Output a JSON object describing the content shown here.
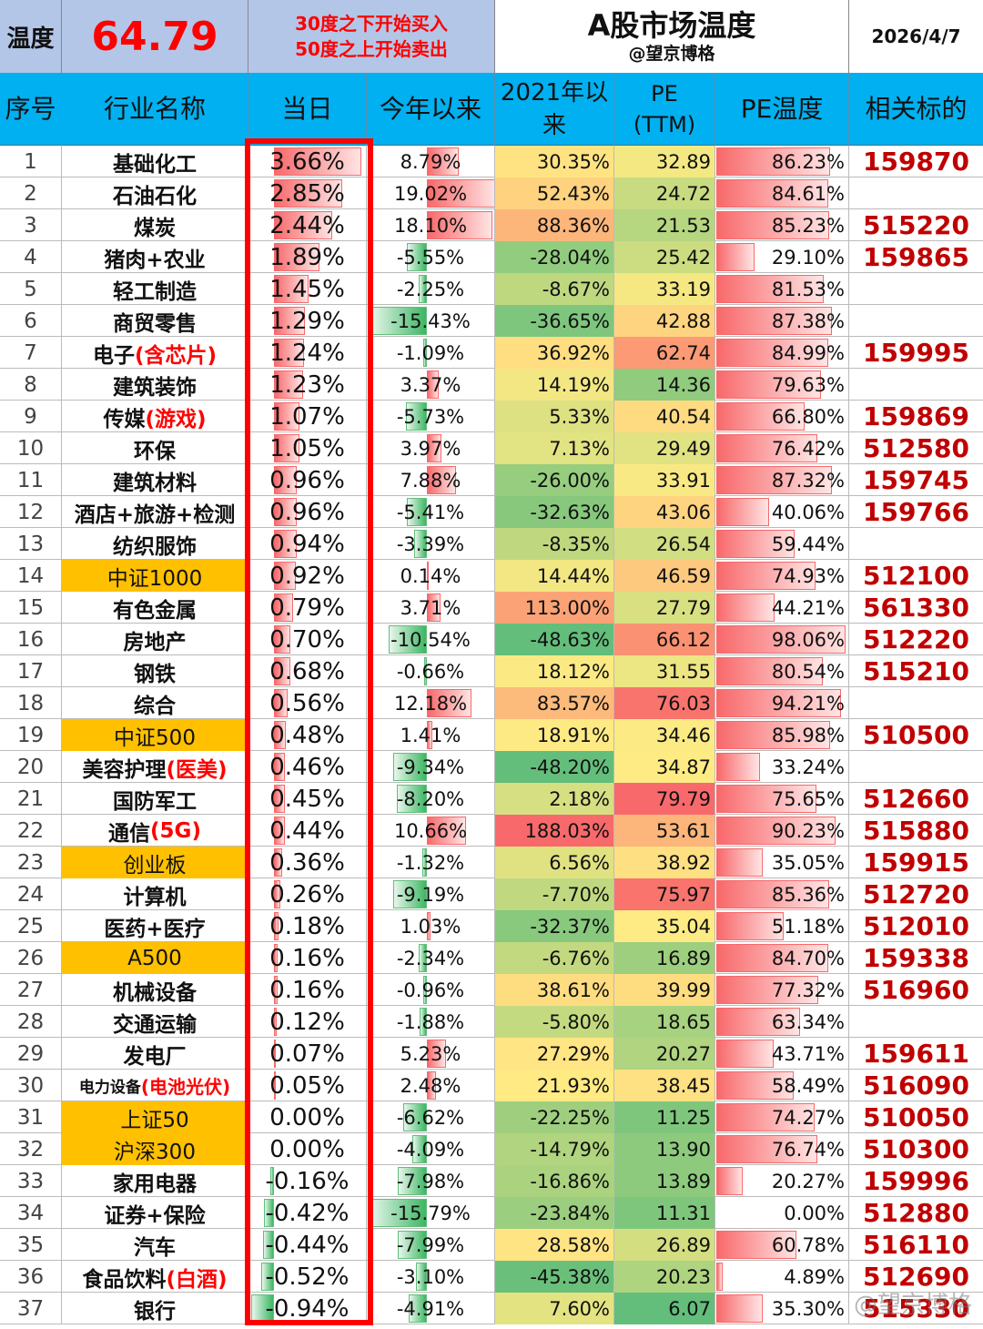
{
  "header": {
    "temp_label": "温度",
    "temp_value": "64.79",
    "rule_line1": "30度之下开始买入",
    "rule_line2": "50度之上开始卖出",
    "title": "A股市场温度",
    "author": "@望京博格",
    "date": "2026/4/7"
  },
  "columns": {
    "seq": "序号",
    "name": "行业名称",
    "today": "当日",
    "ytd": "今年以来",
    "since2021": "2021年以来",
    "pe_line1": "PE",
    "pe_line2": "(TTM)",
    "pe_temp": "PE温度",
    "ticker": "相关标的"
  },
  "watermark": "@望京博格",
  "rows": [
    {
      "seq": "1",
      "name": "基础化工",
      "sub": "",
      "idx": false,
      "today": "3.66%",
      "today_v": 3.66,
      "ytd": "8.79%",
      "ytd_v": 8.79,
      "since2021": "30.35%",
      "s21_v": 30.35,
      "pe": "32.89",
      "pe_v": 32.89,
      "pe_temp": "86.23%",
      "pt_v": 86.23,
      "ticker": "159870"
    },
    {
      "seq": "2",
      "name": "石油石化",
      "sub": "",
      "idx": false,
      "today": "2.85%",
      "today_v": 2.85,
      "ytd": "19.02%",
      "ytd_v": 19.02,
      "since2021": "52.43%",
      "s21_v": 52.43,
      "pe": "24.72",
      "pe_v": 24.72,
      "pe_temp": "84.61%",
      "pt_v": 84.61,
      "ticker": ""
    },
    {
      "seq": "3",
      "name": "煤炭",
      "sub": "",
      "idx": false,
      "today": "2.44%",
      "today_v": 2.44,
      "ytd": "18.10%",
      "ytd_v": 18.1,
      "since2021": "88.36%",
      "s21_v": 88.36,
      "pe": "21.53",
      "pe_v": 21.53,
      "pe_temp": "85.23%",
      "pt_v": 85.23,
      "ticker": "515220"
    },
    {
      "seq": "4",
      "name": "猪肉+农业",
      "sub": "",
      "idx": false,
      "today": "1.89%",
      "today_v": 1.89,
      "ytd": "-5.55%",
      "ytd_v": -5.55,
      "since2021": "-28.04%",
      "s21_v": -28.04,
      "pe": "25.42",
      "pe_v": 25.42,
      "pe_temp": "29.10%",
      "pt_v": 29.1,
      "ticker": "159865"
    },
    {
      "seq": "5",
      "name": "轻工制造",
      "sub": "",
      "idx": false,
      "today": "1.45%",
      "today_v": 1.45,
      "ytd": "-2.25%",
      "ytd_v": -2.25,
      "since2021": "-8.67%",
      "s21_v": -8.67,
      "pe": "33.19",
      "pe_v": 33.19,
      "pe_temp": "81.53%",
      "pt_v": 81.53,
      "ticker": ""
    },
    {
      "seq": "6",
      "name": "商贸零售",
      "sub": "",
      "idx": false,
      "today": "1.29%",
      "today_v": 1.29,
      "ytd": "-15.43%",
      "ytd_v": -15.43,
      "since2021": "-36.65%",
      "s21_v": -36.65,
      "pe": "42.88",
      "pe_v": 42.88,
      "pe_temp": "87.38%",
      "pt_v": 87.38,
      "ticker": ""
    },
    {
      "seq": "7",
      "name": "电子",
      "sub": "(含芯片)",
      "idx": false,
      "today": "1.24%",
      "today_v": 1.24,
      "ytd": "-1.09%",
      "ytd_v": -1.09,
      "since2021": "36.92%",
      "s21_v": 36.92,
      "pe": "62.74",
      "pe_v": 62.74,
      "pe_temp": "84.99%",
      "pt_v": 84.99,
      "ticker": "159995"
    },
    {
      "seq": "8",
      "name": "建筑装饰",
      "sub": "",
      "idx": false,
      "today": "1.23%",
      "today_v": 1.23,
      "ytd": "3.37%",
      "ytd_v": 3.37,
      "since2021": "14.19%",
      "s21_v": 14.19,
      "pe": "14.36",
      "pe_v": 14.36,
      "pe_temp": "79.63%",
      "pt_v": 79.63,
      "ticker": ""
    },
    {
      "seq": "9",
      "name": "传媒",
      "sub": "(游戏)",
      "idx": false,
      "today": "1.07%",
      "today_v": 1.07,
      "ytd": "-5.73%",
      "ytd_v": -5.73,
      "since2021": "5.33%",
      "s21_v": 5.33,
      "pe": "40.54",
      "pe_v": 40.54,
      "pe_temp": "66.80%",
      "pt_v": 66.8,
      "ticker": "159869"
    },
    {
      "seq": "10",
      "name": "环保",
      "sub": "",
      "idx": false,
      "today": "1.05%",
      "today_v": 1.05,
      "ytd": "3.97%",
      "ytd_v": 3.97,
      "since2021": "7.13%",
      "s21_v": 7.13,
      "pe": "29.49",
      "pe_v": 29.49,
      "pe_temp": "76.42%",
      "pt_v": 76.42,
      "ticker": "512580"
    },
    {
      "seq": "11",
      "name": "建筑材料",
      "sub": "",
      "idx": false,
      "today": "0.96%",
      "today_v": 0.96,
      "ytd": "7.88%",
      "ytd_v": 7.88,
      "since2021": "-26.00%",
      "s21_v": -26.0,
      "pe": "33.91",
      "pe_v": 33.91,
      "pe_temp": "87.32%",
      "pt_v": 87.32,
      "ticker": "159745"
    },
    {
      "seq": "12",
      "name": "酒店+旅游+检测",
      "sub": "",
      "idx": false,
      "today": "0.96%",
      "today_v": 0.96,
      "ytd": "-5.41%",
      "ytd_v": -5.41,
      "since2021": "-32.63%",
      "s21_v": -32.63,
      "pe": "43.06",
      "pe_v": 43.06,
      "pe_temp": "40.06%",
      "pt_v": 40.06,
      "ticker": "159766"
    },
    {
      "seq": "13",
      "name": "纺织服饰",
      "sub": "",
      "idx": false,
      "today": "0.94%",
      "today_v": 0.94,
      "ytd": "-3.39%",
      "ytd_v": -3.39,
      "since2021": "-8.35%",
      "s21_v": -8.35,
      "pe": "26.54",
      "pe_v": 26.54,
      "pe_temp": "59.44%",
      "pt_v": 59.44,
      "ticker": ""
    },
    {
      "seq": "14",
      "name": "中证1000",
      "sub": "",
      "idx": true,
      "today": "0.92%",
      "today_v": 0.92,
      "ytd": "0.14%",
      "ytd_v": 0.14,
      "since2021": "14.44%",
      "s21_v": 14.44,
      "pe": "46.59",
      "pe_v": 46.59,
      "pe_temp": "74.93%",
      "pt_v": 74.93,
      "ticker": "512100"
    },
    {
      "seq": "15",
      "name": "有色金属",
      "sub": "",
      "idx": false,
      "today": "0.79%",
      "today_v": 0.79,
      "ytd": "3.71%",
      "ytd_v": 3.71,
      "since2021": "113.00%",
      "s21_v": 113.0,
      "pe": "27.79",
      "pe_v": 27.79,
      "pe_temp": "44.21%",
      "pt_v": 44.21,
      "ticker": "561330"
    },
    {
      "seq": "16",
      "name": "房地产",
      "sub": "",
      "idx": false,
      "today": "0.70%",
      "today_v": 0.7,
      "ytd": "-10.54%",
      "ytd_v": -10.54,
      "since2021": "-48.63%",
      "s21_v": -48.63,
      "pe": "66.12",
      "pe_v": 66.12,
      "pe_temp": "98.06%",
      "pt_v": 98.06,
      "ticker": "512220"
    },
    {
      "seq": "17",
      "name": "钢铁",
      "sub": "",
      "idx": false,
      "today": "0.68%",
      "today_v": 0.68,
      "ytd": "-0.66%",
      "ytd_v": -0.66,
      "since2021": "18.12%",
      "s21_v": 18.12,
      "pe": "31.55",
      "pe_v": 31.55,
      "pe_temp": "80.54%",
      "pt_v": 80.54,
      "ticker": "515210"
    },
    {
      "seq": "18",
      "name": "综合",
      "sub": "",
      "idx": false,
      "today": "0.56%",
      "today_v": 0.56,
      "ytd": "12.18%",
      "ytd_v": 12.18,
      "since2021": "83.57%",
      "s21_v": 83.57,
      "pe": "76.03",
      "pe_v": 76.03,
      "pe_temp": "94.21%",
      "pt_v": 94.21,
      "ticker": ""
    },
    {
      "seq": "19",
      "name": "中证500",
      "sub": "",
      "idx": true,
      "today": "0.48%",
      "today_v": 0.48,
      "ytd": "1.41%",
      "ytd_v": 1.41,
      "since2021": "18.91%",
      "s21_v": 18.91,
      "pe": "34.46",
      "pe_v": 34.46,
      "pe_temp": "85.98%",
      "pt_v": 85.98,
      "ticker": "510500"
    },
    {
      "seq": "20",
      "name": "美容护理",
      "sub": "(医美)",
      "idx": false,
      "today": "0.46%",
      "today_v": 0.46,
      "ytd": "-9.34%",
      "ytd_v": -9.34,
      "since2021": "-48.20%",
      "s21_v": -48.2,
      "pe": "34.87",
      "pe_v": 34.87,
      "pe_temp": "33.24%",
      "pt_v": 33.24,
      "ticker": ""
    },
    {
      "seq": "21",
      "name": "国防军工",
      "sub": "",
      "idx": false,
      "today": "0.45%",
      "today_v": 0.45,
      "ytd": "-8.20%",
      "ytd_v": -8.2,
      "since2021": "2.18%",
      "s21_v": 2.18,
      "pe": "79.79",
      "pe_v": 79.79,
      "pe_temp": "75.65%",
      "pt_v": 75.65,
      "ticker": "512660"
    },
    {
      "seq": "22",
      "name": "通信",
      "sub": "(5G)",
      "idx": false,
      "today": "0.44%",
      "today_v": 0.44,
      "ytd": "10.66%",
      "ytd_v": 10.66,
      "since2021": "188.03%",
      "s21_v": 188.03,
      "pe": "53.61",
      "pe_v": 53.61,
      "pe_temp": "90.23%",
      "pt_v": 90.23,
      "ticker": "515880"
    },
    {
      "seq": "23",
      "name": "创业板",
      "sub": "",
      "idx": true,
      "today": "0.36%",
      "today_v": 0.36,
      "ytd": "-1.32%",
      "ytd_v": -1.32,
      "since2021": "6.56%",
      "s21_v": 6.56,
      "pe": "38.92",
      "pe_v": 38.92,
      "pe_temp": "35.05%",
      "pt_v": 35.05,
      "ticker": "159915"
    },
    {
      "seq": "24",
      "name": "计算机",
      "sub": "",
      "idx": false,
      "today": "0.26%",
      "today_v": 0.26,
      "ytd": "-9.19%",
      "ytd_v": -9.19,
      "since2021": "-7.70%",
      "s21_v": -7.7,
      "pe": "75.97",
      "pe_v": 75.97,
      "pe_temp": "85.36%",
      "pt_v": 85.36,
      "ticker": "512720"
    },
    {
      "seq": "25",
      "name": "医药+医疗",
      "sub": "",
      "idx": false,
      "today": "0.18%",
      "today_v": 0.18,
      "ytd": "1.03%",
      "ytd_v": 1.03,
      "since2021": "-32.37%",
      "s21_v": -32.37,
      "pe": "35.04",
      "pe_v": 35.04,
      "pe_temp": "51.18%",
      "pt_v": 51.18,
      "ticker": "512010"
    },
    {
      "seq": "26",
      "name": "A500",
      "sub": "",
      "idx": true,
      "today": "0.16%",
      "today_v": 0.16,
      "ytd": "-2.34%",
      "ytd_v": -2.34,
      "since2021": "-6.76%",
      "s21_v": -6.76,
      "pe": "16.89",
      "pe_v": 16.89,
      "pe_temp": "84.70%",
      "pt_v": 84.7,
      "ticker": "159338"
    },
    {
      "seq": "27",
      "name": "机械设备",
      "sub": "",
      "idx": false,
      "today": "0.16%",
      "today_v": 0.16,
      "ytd": "-0.96%",
      "ytd_v": -0.96,
      "since2021": "38.61%",
      "s21_v": 38.61,
      "pe": "39.99",
      "pe_v": 39.99,
      "pe_temp": "77.32%",
      "pt_v": 77.32,
      "ticker": "516960"
    },
    {
      "seq": "28",
      "name": "交通运输",
      "sub": "",
      "idx": false,
      "today": "0.12%",
      "today_v": 0.12,
      "ytd": "-1.88%",
      "ytd_v": -1.88,
      "since2021": "-5.80%",
      "s21_v": -5.8,
      "pe": "18.65",
      "pe_v": 18.65,
      "pe_temp": "63.34%",
      "pt_v": 63.34,
      "ticker": ""
    },
    {
      "seq": "29",
      "name": "发电厂",
      "sub": "",
      "idx": false,
      "today": "0.07%",
      "today_v": 0.07,
      "ytd": "5.23%",
      "ytd_v": 5.23,
      "since2021": "27.29%",
      "s21_v": 27.29,
      "pe": "20.27",
      "pe_v": 20.27,
      "pe_temp": "43.71%",
      "pt_v": 43.71,
      "ticker": "159611"
    },
    {
      "seq": "30",
      "name": "电力设备",
      "sub": "(电池光伏)",
      "idx": false,
      "tiny": true,
      "today": "0.05%",
      "today_v": 0.05,
      "ytd": "2.48%",
      "ytd_v": 2.48,
      "since2021": "21.93%",
      "s21_v": 21.93,
      "pe": "38.45",
      "pe_v": 38.45,
      "pe_temp": "58.49%",
      "pt_v": 58.49,
      "ticker": "516090"
    },
    {
      "seq": "31",
      "name": "上证50",
      "sub": "",
      "idx": true,
      "today": "0.00%",
      "today_v": 0.0,
      "ytd": "-6.62%",
      "ytd_v": -6.62,
      "since2021": "-22.25%",
      "s21_v": -22.25,
      "pe": "11.25",
      "pe_v": 11.25,
      "pe_temp": "74.27%",
      "pt_v": 74.27,
      "ticker": "510050"
    },
    {
      "seq": "32",
      "name": "沪深300",
      "sub": "",
      "idx": true,
      "today": "0.00%",
      "today_v": 0.0,
      "ytd": "-4.09%",
      "ytd_v": -4.09,
      "since2021": "-14.79%",
      "s21_v": -14.79,
      "pe": "13.90",
      "pe_v": 13.9,
      "pe_temp": "76.74%",
      "pt_v": 76.74,
      "ticker": "510300"
    },
    {
      "seq": "33",
      "name": "家用电器",
      "sub": "",
      "idx": false,
      "today": "-0.16%",
      "today_v": -0.16,
      "ytd": "-7.98%",
      "ytd_v": -7.98,
      "since2021": "-16.86%",
      "s21_v": -16.86,
      "pe": "13.89",
      "pe_v": 13.89,
      "pe_temp": "20.27%",
      "pt_v": 20.27,
      "ticker": "159996"
    },
    {
      "seq": "34",
      "name": "证券+保险",
      "sub": "",
      "idx": false,
      "today": "-0.42%",
      "today_v": -0.42,
      "ytd": "-15.79%",
      "ytd_v": -15.79,
      "since2021": "-23.84%",
      "s21_v": -23.84,
      "pe": "11.31",
      "pe_v": 11.31,
      "pe_temp": "0.00%",
      "pt_v": 0.0,
      "ticker": "512880"
    },
    {
      "seq": "35",
      "name": "汽车",
      "sub": "",
      "idx": false,
      "today": "-0.44%",
      "today_v": -0.44,
      "ytd": "-7.99%",
      "ytd_v": -7.99,
      "since2021": "28.58%",
      "s21_v": 28.58,
      "pe": "26.89",
      "pe_v": 26.89,
      "pe_temp": "60.78%",
      "pt_v": 60.78,
      "ticker": "516110"
    },
    {
      "seq": "36",
      "name": "食品饮料",
      "sub": "(白酒)",
      "idx": false,
      "today": "-0.52%",
      "today_v": -0.52,
      "ytd": "-3.10%",
      "ytd_v": -3.1,
      "since2021": "-45.38%",
      "s21_v": -45.38,
      "pe": "20.23",
      "pe_v": 20.23,
      "pe_temp": "4.89%",
      "pt_v": 4.89,
      "ticker": "512690"
    },
    {
      "seq": "37",
      "name": "银行",
      "sub": "",
      "idx": false,
      "today": "-0.94%",
      "today_v": -0.94,
      "ytd": "-4.91%",
      "ytd_v": -4.91,
      "since2021": "7.60%",
      "s21_v": 7.6,
      "pe": "6.07",
      "pe_v": 6.07,
      "pe_temp": "35.30%",
      "pt_v": 35.3,
      "ticker": "515330"
    }
  ]
}
